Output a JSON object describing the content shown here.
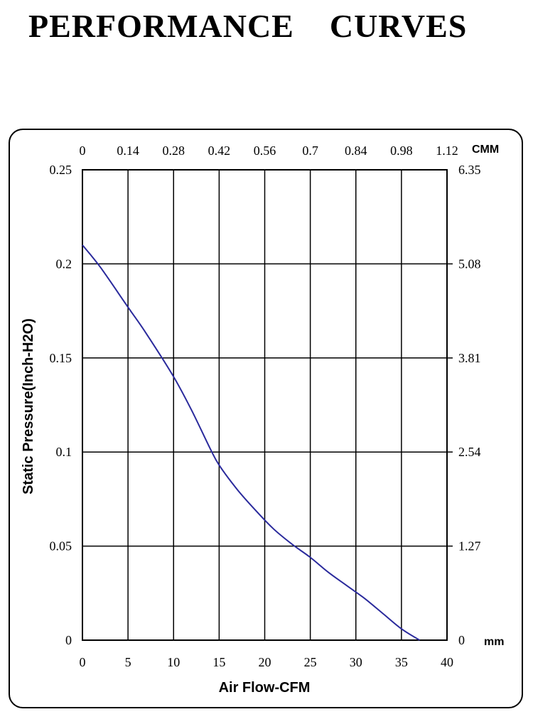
{
  "page": {
    "title": "PERFORMANCE    CURVES"
  },
  "chart_data": {
    "type": "line",
    "title": "PERFORMANCE    CURVES",
    "xlabel": "Air Flow-CFM",
    "ylabel": "Static Pressure(Inch-H2O)",
    "x_unit_top": "CMM",
    "y_unit_right": "mm",
    "xlim": [
      0,
      40
    ],
    "ylim": [
      0,
      0.25
    ],
    "grid": true,
    "x_ticks_bottom": [
      "0",
      "5",
      "10",
      "15",
      "20",
      "25",
      "30",
      "35",
      "40"
    ],
    "x_ticks_top": [
      "0",
      "0.14",
      "0.28",
      "0.42",
      "0.56",
      "0.7",
      "0.84",
      "0.98",
      "1.12"
    ],
    "y_ticks_left": [
      "0",
      "0.05",
      "0.1",
      "0.15",
      "0.2",
      "0.25"
    ],
    "y_ticks_right": [
      "0",
      "1.27",
      "2.54",
      "3.81",
      "5.08",
      "6.35"
    ],
    "line_color": "#2a2a9c",
    "series": [
      {
        "x": [
          0,
          2,
          5,
          7,
          10,
          12,
          14,
          15,
          17,
          19,
          21,
          23,
          25,
          27,
          29,
          31,
          33,
          35,
          37
        ],
        "y": [
          0.21,
          0.198,
          0.177,
          0.163,
          0.14,
          0.122,
          0.102,
          0.093,
          0.08,
          0.069,
          0.059,
          0.051,
          0.044,
          0.036,
          0.029,
          0.022,
          0.014,
          0.006,
          0
        ]
      }
    ]
  }
}
